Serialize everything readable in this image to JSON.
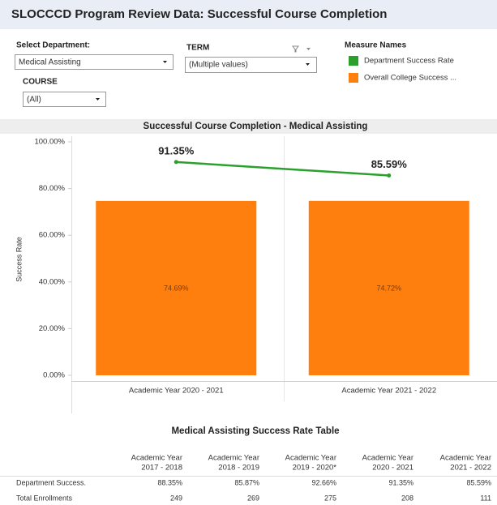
{
  "header": {
    "title": "SLOCCCD Program Review Data: Successful Course Completion"
  },
  "filters": {
    "department": {
      "label": "Select Department:",
      "value": "Medical Assisting"
    },
    "term": {
      "label": "TERM",
      "value": "(Multiple values)"
    },
    "course": {
      "label": "COURSE",
      "value": "(All)"
    }
  },
  "chart_data": {
    "type": "bar",
    "title": "Successful Course Completion - Medical Assisting",
    "legend_title": "Measure Names",
    "y_label": "Success Rate",
    "categories": [
      "Academic Year 2020 - 2021",
      "Academic Year 2021 - 2022"
    ],
    "series": [
      {
        "name": "Department Success Rate",
        "type": "line",
        "color": "#2ca02c",
        "values": [
          91.35,
          85.59
        ],
        "value_labels": [
          "91.35%",
          "85.59%"
        ]
      },
      {
        "name": "Overall College Success ...",
        "type": "bar",
        "color": "#ff7f0e",
        "values": [
          74.69,
          74.72
        ],
        "value_labels": [
          "74.69%",
          "74.72%"
        ]
      }
    ],
    "ylim": [
      0,
      100
    ],
    "yticks": [
      {
        "value": 0,
        "label": "0.00%"
      },
      {
        "value": 20,
        "label": "20.00%"
      },
      {
        "value": 40,
        "label": "40.00%"
      },
      {
        "value": 60,
        "label": "60.00%"
      },
      {
        "value": 80,
        "label": "80.00%"
      },
      {
        "value": 100,
        "label": "100.00%"
      }
    ],
    "grid": false
  },
  "table": {
    "title": "Medical Assisting Success Rate Table",
    "columns": [
      [
        "Academic Year",
        "2017 - 2018"
      ],
      [
        "Academic Year",
        "2018 - 2019"
      ],
      [
        "Academic Year",
        "2019 - 2020*"
      ],
      [
        "Academic Year",
        "2020 - 2021"
      ],
      [
        "Academic Year",
        "2021 - 2022"
      ]
    ],
    "rows": [
      [
        "Department Success.",
        "88.35%",
        "85.87%",
        "92.66%",
        "91.35%",
        "85.59%"
      ],
      [
        "Total Enrollments",
        "249",
        "269",
        "275",
        "208",
        "111"
      ]
    ]
  }
}
